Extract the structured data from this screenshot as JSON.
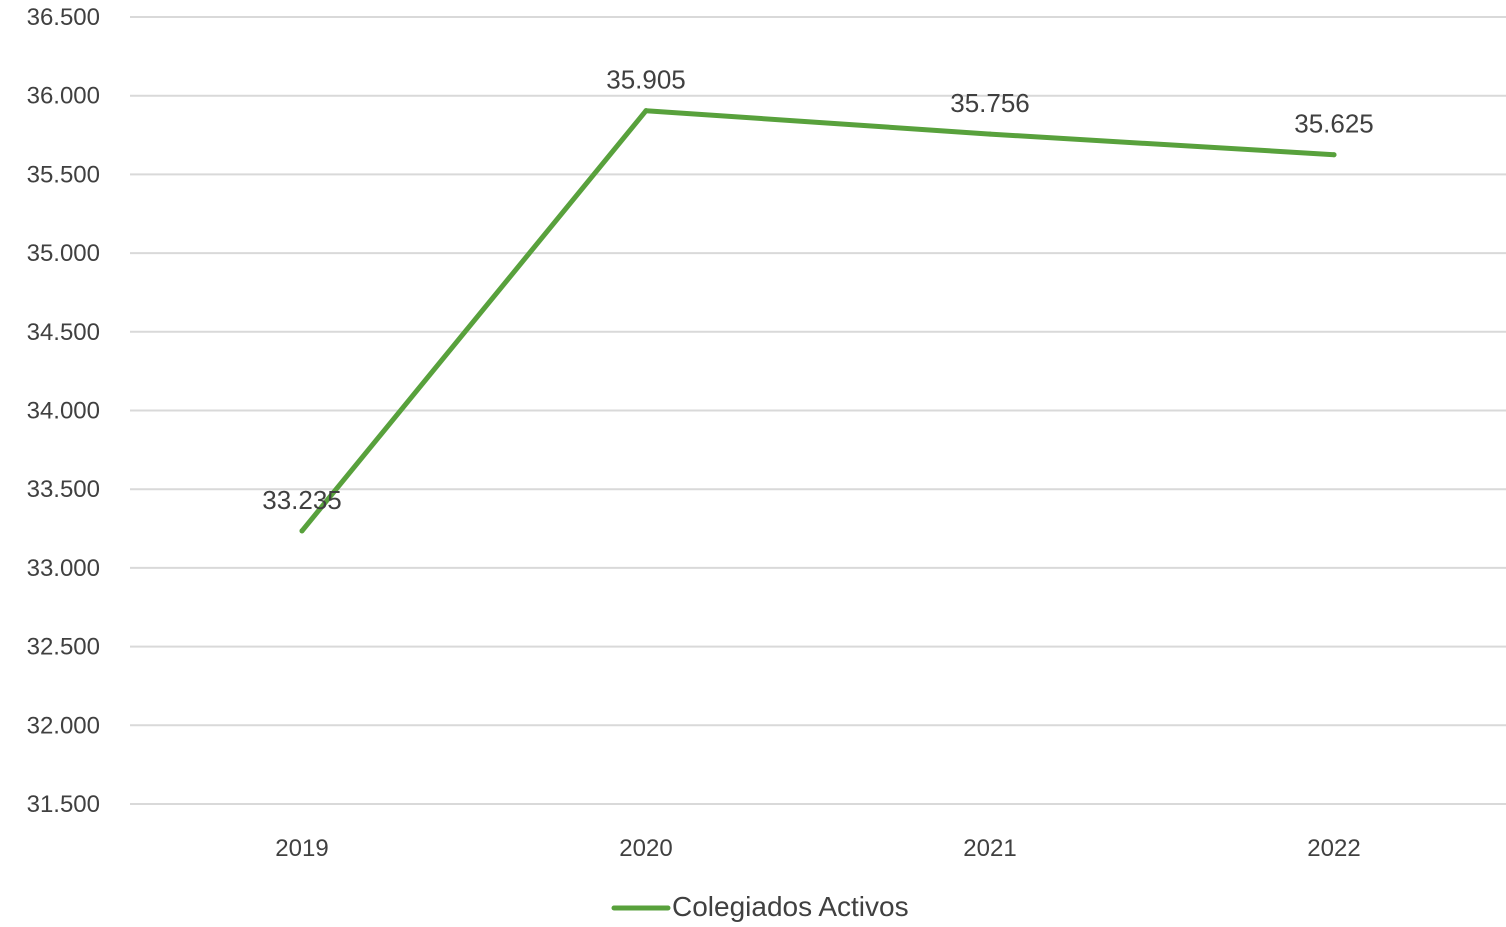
{
  "chart_data": {
    "type": "line",
    "title": "",
    "xlabel": "",
    "ylabel": "",
    "categories": [
      "2019",
      "2020",
      "2021",
      "2022"
    ],
    "series": [
      {
        "name": "Colegiados Activos",
        "values": [
          33235,
          35905,
          35756,
          35625
        ],
        "value_labels": [
          "33.235",
          "35.905",
          "35.756",
          "35.625"
        ],
        "color": "#58a13c"
      }
    ],
    "ylim": [
      31500,
      36500
    ],
    "y_ticks": [
      31500,
      32000,
      32500,
      33000,
      33500,
      34000,
      34500,
      35000,
      35500,
      36000,
      36500
    ],
    "y_tick_labels": [
      "31.500",
      "32.000",
      "32.500",
      "33.000",
      "33.500",
      "34.000",
      "34.500",
      "35.000",
      "35.500",
      "36.000",
      "36.500"
    ],
    "grid": true,
    "legend_position": "bottom",
    "colors": {
      "series": "#58a13c",
      "grid": "#d9d9d9",
      "text": "#404040"
    }
  }
}
